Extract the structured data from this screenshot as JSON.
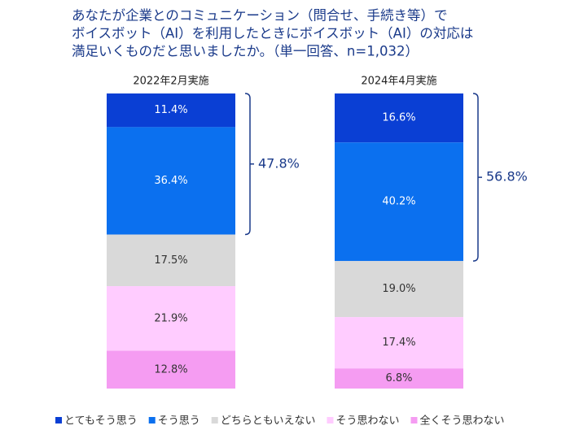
{
  "chart_data": {
    "type": "stacked-bar",
    "title": [
      "あなたが企業とのコミュニケーション（問合せ、手続き等）で",
      "ボイスボット（AI）を利用したときにボイスボット（AI）の対応は",
      "満足いくものだと思いましたか。（単一回答、n=1,032）"
    ],
    "categories": [
      "2022年2月実施",
      "2024年4月実施"
    ],
    "ylim": [
      0,
      100
    ],
    "series": [
      {
        "name": "とてもそう思う",
        "color": "#0a3fd4",
        "label_color": "#ffffff",
        "values": [
          11.4,
          16.6
        ],
        "value_labels": [
          "11.4%",
          "16.6%"
        ]
      },
      {
        "name": "そう思う",
        "color": "#0b70ef",
        "label_color": "#ffffff",
        "values": [
          36.4,
          40.2
        ],
        "value_labels": [
          "36.4%",
          "40.2%"
        ]
      },
      {
        "name": "どちらともいえない",
        "color": "#d9d9d9",
        "label_color": "#333333",
        "values": [
          17.5,
          19.0
        ],
        "value_labels": [
          "17.5%",
          "19.0%"
        ]
      },
      {
        "name": "そう思わない",
        "color": "#ffccff",
        "label_color": "#333333",
        "values": [
          21.9,
          17.4
        ],
        "value_labels": [
          "21.9%",
          "17.4%"
        ]
      },
      {
        "name": "全くそう思わない",
        "color": "#f59cf2",
        "label_color": "#333333",
        "values": [
          12.8,
          6.8
        ],
        "value_labels": [
          "12.8%",
          "6.8%"
        ]
      }
    ],
    "brackets": [
      {
        "value": 47.8,
        "label": "47.8%"
      },
      {
        "value": 56.8,
        "label": "56.8%"
      }
    ]
  }
}
